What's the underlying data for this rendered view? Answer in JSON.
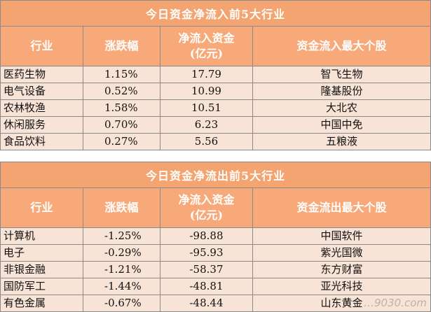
{
  "inflow": {
    "title": "今日资金净流入前5大行业",
    "headers": [
      "行业",
      "涨跌幅",
      "净流入资金",
      "(亿元)",
      "资金流入最大个股"
    ],
    "rows": [
      {
        "industry": "医药生物",
        "change": "1.15%",
        "amount": "17.79",
        "stock": "智飞生物"
      },
      {
        "industry": "电气设备",
        "change": "0.52%",
        "amount": "10.99",
        "stock": "隆基股份"
      },
      {
        "industry": "农林牧渔",
        "change": "1.58%",
        "amount": "10.51",
        "stock": "大北农"
      },
      {
        "industry": "休闲服务",
        "change": "0.70%",
        "amount": "6.23",
        "stock": "中国中免"
      },
      {
        "industry": "食品饮料",
        "change": "0.27%",
        "amount": "5.56",
        "stock": "五粮液"
      }
    ]
  },
  "outflow": {
    "title": "今日资金净流出前5大行业",
    "headers": [
      "行业",
      "涨跌幅",
      "净流入资金",
      "(亿元)",
      "资金流出最大个股"
    ],
    "rows": [
      {
        "industry": "计算机",
        "change": "-1.25%",
        "amount": "-98.88",
        "stock": "中国软件"
      },
      {
        "industry": "电子",
        "change": "-0.29%",
        "amount": "-95.93",
        "stock": "紫光国微"
      },
      {
        "industry": "非银金融",
        "change": "-1.21%",
        "amount": "-58.37",
        "stock": "东方财富"
      },
      {
        "industry": "国防军工",
        "change": "-1.44%",
        "amount": "-48.81",
        "stock": "亚光科技"
      },
      {
        "industry": "有色金属",
        "change": "-0.67%",
        "amount": "-48.44",
        "stock": "山东黄金"
      }
    ]
  },
  "watermark": "…9030.com"
}
